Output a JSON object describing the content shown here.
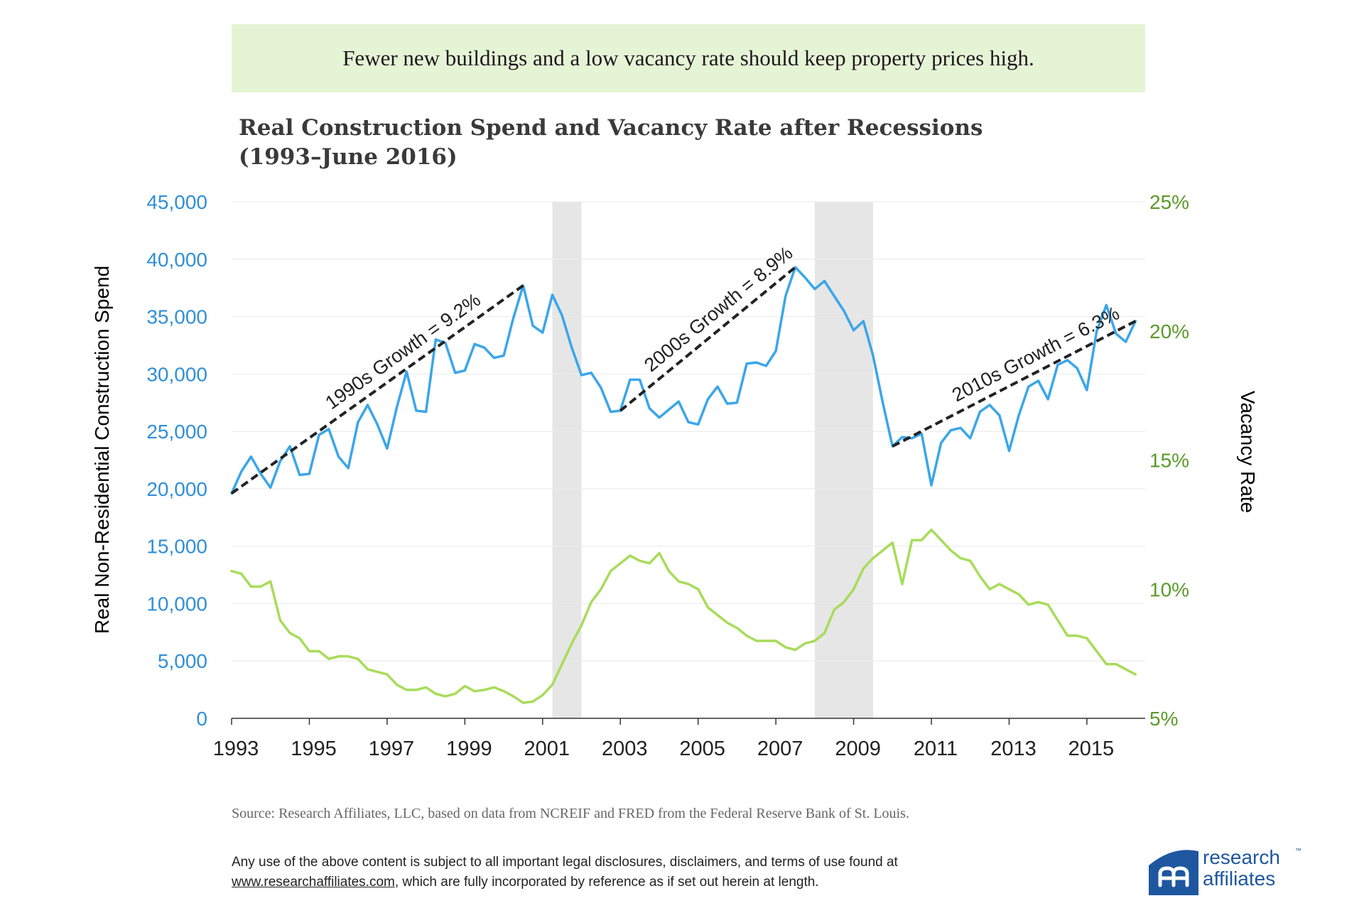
{
  "banner": {
    "text": "Fewer new buildings and a low vacancy rate should keep property prices high."
  },
  "title": {
    "line1": "Real Construction Spend and Vacancy Rate after Recessions",
    "line2": "(1993–June 2016)"
  },
  "source": "Source: Research Affiliates, LLC, based on data from NCREIF and FRED from the Federal Reserve Bank of St. Louis.",
  "disclaimer": {
    "line1": "Any use of the above content is subject to all important legal disclosures, disclaimers, and terms of use found at",
    "link": "www.researchaffiliates.com",
    "line2_rest": ", which are fully incorporated by reference as if set out herein at length."
  },
  "logo": {
    "line1": "research",
    "line2": "affiliates",
    "tm": "™"
  },
  "colors": {
    "spend": "#3aa6ea",
    "vacancy": "#a8dc5a",
    "trend": "#222222",
    "recession": "#e6e6e6",
    "left_axis": "#2f8fd8",
    "right_axis": "#5a9a28",
    "grid": "#ececec",
    "axis": "#333333"
  },
  "chart_data": {
    "type": "line",
    "x_range": [
      1993,
      2016.5
    ],
    "x_ticks": [
      "1993",
      "1995",
      "1997",
      "1999",
      "2001",
      "2003",
      "2005",
      "2007",
      "2009",
      "2011",
      "2013",
      "2015"
    ],
    "y_left": {
      "label": "Real Non-Residential Construction Spend",
      "range": [
        0,
        45000
      ],
      "ticks": [
        "0",
        "5,000",
        "10,000",
        "15,000",
        "20,000",
        "25,000",
        "30,000",
        "35,000",
        "40,000",
        "45,000"
      ]
    },
    "y_right": {
      "label": "Vacancy Rate",
      "range": [
        5,
        25
      ],
      "ticks": [
        "5%",
        "10%",
        "15%",
        "20%",
        "25%"
      ]
    },
    "recessions": [
      [
        2001.25,
        2002.0
      ],
      [
        2008.0,
        2009.5
      ]
    ],
    "series": [
      {
        "axis": "left",
        "points": [
          [
            1993.0,
            19600
          ],
          [
            1993.25,
            21500
          ],
          [
            1993.5,
            22800
          ],
          [
            1993.75,
            21300
          ],
          [
            1994.0,
            20100
          ],
          [
            1994.25,
            22400
          ],
          [
            1994.5,
            23700
          ],
          [
            1994.75,
            21200
          ],
          [
            1995.0,
            21300
          ],
          [
            1995.25,
            24700
          ],
          [
            1995.5,
            25200
          ],
          [
            1995.75,
            22800
          ],
          [
            1996.0,
            21800
          ],
          [
            1996.25,
            25800
          ],
          [
            1996.5,
            27300
          ],
          [
            1996.75,
            25600
          ],
          [
            1997.0,
            23500
          ],
          [
            1997.25,
            27100
          ],
          [
            1997.5,
            30200
          ],
          [
            1997.75,
            26800
          ],
          [
            1998.0,
            26700
          ],
          [
            1998.25,
            33000
          ],
          [
            1998.5,
            32700
          ],
          [
            1998.75,
            30100
          ],
          [
            1999.0,
            30300
          ],
          [
            1999.25,
            32600
          ],
          [
            1999.5,
            32300
          ],
          [
            1999.75,
            31400
          ],
          [
            2000.0,
            31600
          ],
          [
            2000.25,
            34900
          ],
          [
            2000.5,
            37700
          ],
          [
            2000.75,
            34200
          ],
          [
            2001.0,
            33600
          ],
          [
            2001.25,
            36900
          ],
          [
            2001.5,
            35100
          ],
          [
            2001.75,
            32300
          ],
          [
            2002.0,
            29900
          ],
          [
            2002.25,
            30100
          ],
          [
            2002.5,
            28800
          ],
          [
            2002.75,
            26700
          ],
          [
            2003.0,
            26800
          ],
          [
            2003.25,
            29500
          ],
          [
            2003.5,
            29500
          ],
          [
            2003.75,
            27000
          ],
          [
            2004.0,
            26200
          ],
          [
            2004.25,
            26900
          ],
          [
            2004.5,
            27600
          ],
          [
            2004.75,
            25800
          ],
          [
            2005.0,
            25600
          ],
          [
            2005.25,
            27800
          ],
          [
            2005.5,
            28900
          ],
          [
            2005.75,
            27400
          ],
          [
            2006.0,
            27500
          ],
          [
            2006.25,
            30900
          ],
          [
            2006.5,
            31000
          ],
          [
            2006.75,
            30700
          ],
          [
            2007.0,
            32000
          ],
          [
            2007.25,
            36800
          ],
          [
            2007.5,
            39300
          ],
          [
            2007.75,
            38400
          ],
          [
            2008.0,
            37400
          ],
          [
            2008.25,
            38100
          ],
          [
            2008.5,
            36800
          ],
          [
            2008.75,
            35500
          ],
          [
            2009.0,
            33800
          ],
          [
            2009.25,
            34600
          ],
          [
            2009.5,
            31600
          ],
          [
            2009.75,
            27500
          ],
          [
            2010.0,
            23700
          ],
          [
            2010.25,
            24500
          ],
          [
            2010.5,
            24400
          ],
          [
            2010.75,
            24800
          ],
          [
            2011.0,
            20300
          ],
          [
            2011.25,
            24000
          ],
          [
            2011.5,
            25100
          ],
          [
            2011.75,
            25300
          ],
          [
            2012.0,
            24400
          ],
          [
            2012.25,
            26700
          ],
          [
            2012.5,
            27300
          ],
          [
            2012.75,
            26400
          ],
          [
            2013.0,
            23300
          ],
          [
            2013.25,
            26400
          ],
          [
            2013.5,
            28900
          ],
          [
            2013.75,
            29400
          ],
          [
            2014.0,
            27800
          ],
          [
            2014.25,
            30800
          ],
          [
            2014.5,
            31200
          ],
          [
            2014.75,
            30500
          ],
          [
            2015.0,
            28600
          ],
          [
            2015.25,
            33700
          ],
          [
            2015.5,
            36000
          ],
          [
            2015.75,
            33500
          ],
          [
            2016.0,
            32800
          ],
          [
            2016.25,
            34600
          ]
        ]
      },
      {
        "axis": "right",
        "points": [
          [
            1993.0,
            10.7
          ],
          [
            1993.25,
            10.6
          ],
          [
            1993.5,
            10.1
          ],
          [
            1993.75,
            10.1
          ],
          [
            1994.0,
            10.3
          ],
          [
            1994.25,
            8.8
          ],
          [
            1994.5,
            8.3
          ],
          [
            1994.75,
            8.1
          ],
          [
            1995.0,
            7.6
          ],
          [
            1995.25,
            7.6
          ],
          [
            1995.5,
            7.3
          ],
          [
            1995.75,
            7.4
          ],
          [
            1996.0,
            7.4
          ],
          [
            1996.25,
            7.3
          ],
          [
            1996.5,
            6.9
          ],
          [
            1996.75,
            6.8
          ],
          [
            1997.0,
            6.7
          ],
          [
            1997.25,
            6.3
          ],
          [
            1997.5,
            6.1
          ],
          [
            1997.75,
            6.1
          ],
          [
            1998.0,
            6.2
          ],
          [
            1998.25,
            5.95
          ],
          [
            1998.5,
            5.85
          ],
          [
            1998.75,
            5.95
          ],
          [
            1999.0,
            6.25
          ],
          [
            1999.25,
            6.05
          ],
          [
            1999.5,
            6.1
          ],
          [
            1999.75,
            6.2
          ],
          [
            2000.0,
            6.05
          ],
          [
            2000.25,
            5.85
          ],
          [
            2000.5,
            5.6
          ],
          [
            2000.75,
            5.65
          ],
          [
            2001.0,
            5.9
          ],
          [
            2001.25,
            6.3
          ],
          [
            2001.5,
            7.1
          ],
          [
            2001.75,
            7.9
          ],
          [
            2002.0,
            8.6
          ],
          [
            2002.25,
            9.5
          ],
          [
            2002.5,
            10.0
          ],
          [
            2002.75,
            10.7
          ],
          [
            2003.0,
            11.0
          ],
          [
            2003.25,
            11.3
          ],
          [
            2003.5,
            11.1
          ],
          [
            2003.75,
            11.0
          ],
          [
            2004.0,
            11.4
          ],
          [
            2004.25,
            10.7
          ],
          [
            2004.5,
            10.3
          ],
          [
            2004.75,
            10.2
          ],
          [
            2005.0,
            10.0
          ],
          [
            2005.25,
            9.3
          ],
          [
            2005.5,
            9.0
          ],
          [
            2005.75,
            8.7
          ],
          [
            2006.0,
            8.5
          ],
          [
            2006.25,
            8.2
          ],
          [
            2006.5,
            8.0
          ],
          [
            2006.75,
            8.0
          ],
          [
            2007.0,
            8.0
          ],
          [
            2007.25,
            7.75
          ],
          [
            2007.5,
            7.65
          ],
          [
            2007.75,
            7.9
          ],
          [
            2008.0,
            8.0
          ],
          [
            2008.25,
            8.3
          ],
          [
            2008.5,
            9.2
          ],
          [
            2008.75,
            9.5
          ],
          [
            2009.0,
            10.0
          ],
          [
            2009.25,
            10.8
          ],
          [
            2009.5,
            11.2
          ],
          [
            2009.75,
            11.5
          ],
          [
            2010.0,
            11.8
          ],
          [
            2010.25,
            10.2
          ],
          [
            2010.5,
            11.9
          ],
          [
            2010.75,
            11.9
          ],
          [
            2011.0,
            12.3
          ],
          [
            2011.25,
            11.9
          ],
          [
            2011.5,
            11.5
          ],
          [
            2011.75,
            11.2
          ],
          [
            2012.0,
            11.1
          ],
          [
            2012.25,
            10.5
          ],
          [
            2012.5,
            10.0
          ],
          [
            2012.75,
            10.2
          ],
          [
            2013.0,
            10.0
          ],
          [
            2013.25,
            9.8
          ],
          [
            2013.5,
            9.4
          ],
          [
            2013.75,
            9.5
          ],
          [
            2014.0,
            9.4
          ],
          [
            2014.25,
            8.8
          ],
          [
            2014.5,
            8.2
          ],
          [
            2014.75,
            8.2
          ],
          [
            2015.0,
            8.1
          ],
          [
            2015.25,
            7.6
          ],
          [
            2015.5,
            7.1
          ],
          [
            2015.75,
            7.1
          ],
          [
            2016.0,
            6.9
          ],
          [
            2016.25,
            6.7
          ]
        ]
      }
    ],
    "trend_lines": [
      {
        "label": "1990s Growth = 9.2%",
        "start": [
          1993.0,
          19600
        ],
        "end": [
          2000.5,
          37700
        ]
      },
      {
        "label": "2000s Growth = 8.9%",
        "start": [
          2003.0,
          26800
        ],
        "end": [
          2007.5,
          39300
        ]
      },
      {
        "label": "2010s Growth = 6.3%",
        "start": [
          2010.0,
          23700
        ],
        "end": [
          2016.25,
          34600
        ]
      }
    ]
  }
}
